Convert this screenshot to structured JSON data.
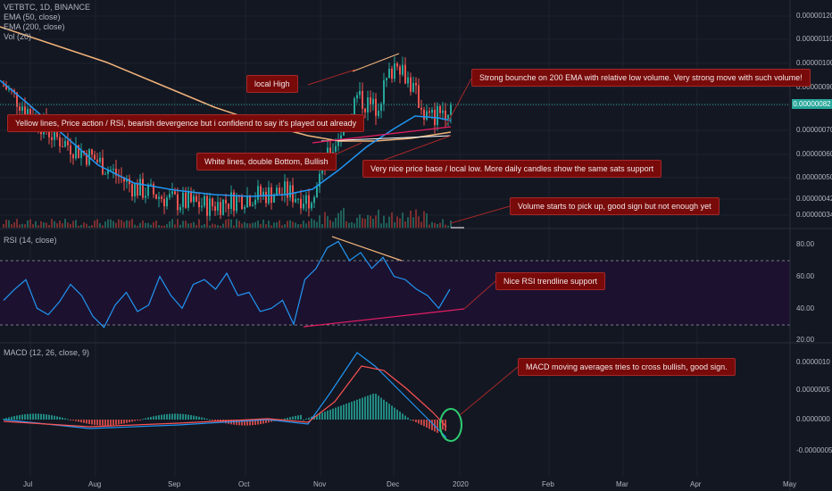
{
  "header": {
    "symbol": "VETBTC, 1D, BINANCE",
    "ema50": "EMA (50, close)",
    "ema200": "EMA (200, close)",
    "vol": "Vol (20)"
  },
  "rsi_panel": {
    "title": "RSI (14, close)"
  },
  "macd_panel": {
    "title": "MACD (12, 26, close, 9)"
  },
  "current_price": "0.00000082",
  "annotations": {
    "local_high": "local High",
    "strong_bounce": "Strong bounche on 200 EMA with relative low volume. Very strong move with such volume!",
    "yellow_lines": "Yellow lines, Price action / RSI, bearish devergence but i confidend to say it's played out already",
    "white_lines": "White lines, double Bottom, Bullish",
    "price_base": "Very nice price base / local low. More daily candles show the same sats support",
    "volume": "Volume starts to pick up, good sign but not enough yet",
    "rsi_support": "Nice RSI trendline support",
    "macd_cross": "MACD moving averages tries to cross bullish, good sign."
  },
  "chart_data": [
    {
      "type": "candlestick",
      "panel": "price",
      "title": "VETBTC, 1D, BINANCE",
      "y_ticks": [
        "0.00000120",
        "0.00000110",
        "0.00000100",
        "0.00000090",
        "0.00000080",
        "0.00000070",
        "0.00000060",
        "0.00000050",
        "0.00000042",
        "0.00000034"
      ],
      "ylim": [
        3.1e-07,
        1.25e-06
      ],
      "x_ticks": [
        "Jul",
        "Aug",
        "Sep",
        "Oct",
        "Nov",
        "Dec",
        "2020",
        "Feb",
        "Mar",
        "Apr",
        "May"
      ],
      "close_key_points": [
        {
          "x": "Jul",
          "y": 9e-07
        },
        {
          "x": "mid-Jul",
          "y": 6.8e-07
        },
        {
          "x": "Aug",
          "y": 5.8e-07
        },
        {
          "x": "mid-Aug",
          "y": 4.6e-07
        },
        {
          "x": "Sep",
          "y": 4e-07
        },
        {
          "x": "mid-Sep",
          "y": 3.8e-07
        },
        {
          "x": "Oct",
          "y": 4.2e-07
        },
        {
          "x": "mid-Oct",
          "y": 4.4e-07
        },
        {
          "x": "late-Oct",
          "y": 4.1e-07
        },
        {
          "x": "Nov",
          "y": 5.2e-07
        },
        {
          "x": "mid-Nov",
          "y": 8.5e-07
        },
        {
          "x": "late-Nov",
          "y": 8e-07
        },
        {
          "x": "Dec",
          "y": 1.02e-06
        },
        {
          "x": "mid-Dec",
          "y": 7.5e-07
        },
        {
          "x": "late-Dec",
          "y": 8.2e-07
        }
      ],
      "series": [
        {
          "name": "EMA (50, close)",
          "color": "#2196f3"
        },
        {
          "name": "EMA (200, close)",
          "color": "#f0b27a"
        },
        {
          "name": "Vol (20)"
        }
      ],
      "current_price": 8.2e-07
    },
    {
      "type": "line",
      "panel": "rsi",
      "title": "RSI (14, close)",
      "y_ticks": [
        "80.00",
        "60.00",
        "40.00",
        "20.00"
      ],
      "bands": [
        30,
        70
      ],
      "ylim": [
        20,
        85
      ],
      "values_approx": [
        45,
        52,
        58,
        40,
        36,
        44,
        55,
        48,
        35,
        28,
        42,
        50,
        38,
        42,
        60,
        48,
        40,
        55,
        58,
        52,
        62,
        48,
        50,
        38,
        40,
        45,
        30,
        58,
        65,
        78,
        82,
        70,
        75,
        65,
        72,
        60,
        58,
        52,
        48,
        40,
        52
      ]
    },
    {
      "type": "line",
      "panel": "macd",
      "title": "MACD (12, 26, close, 9)",
      "y_ticks": [
        "0.0000010",
        "0.0000005",
        "0.0000000",
        "-0.0000005"
      ],
      "ylim": [
        -7.5e-07,
        1.2e-06
      ],
      "series": [
        {
          "name": "MACD",
          "color": "#2196f3"
        },
        {
          "name": "Signal",
          "color": "#ff5252"
        }
      ]
    }
  ]
}
